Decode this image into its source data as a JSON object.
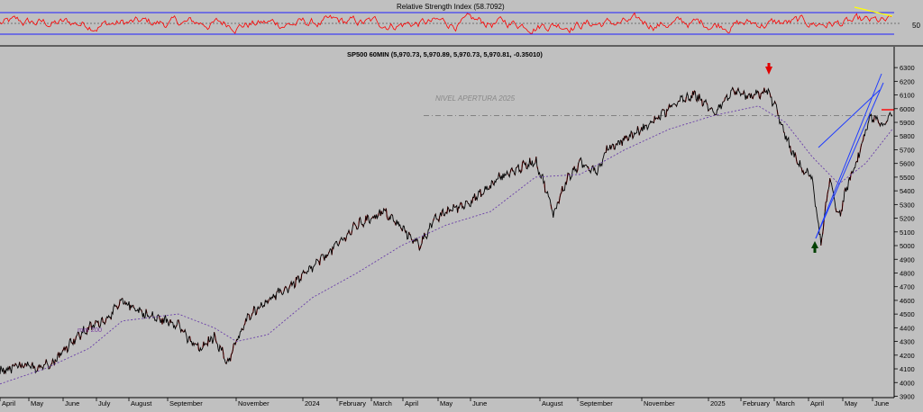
{
  "rsi_panel": {
    "title": "Relative Strength Index (58.7092)",
    "level_label": "50"
  },
  "chart_data": {
    "type": "line",
    "title": "SP500 60MIN (5,970.73, 5,970.89, 5,970.73, 5,970.81, -0.35010)",
    "ylim": [
      3890,
      6360
    ],
    "y_ticks": [
      3900,
      4000,
      4100,
      4200,
      4300,
      4400,
      4500,
      4600,
      4700,
      4800,
      4900,
      5000,
      5100,
      5200,
      5300,
      5400,
      5500,
      5600,
      5700,
      5800,
      5900,
      6000,
      6100,
      6200,
      6300
    ],
    "x_tick_labels": [
      "April",
      "May",
      "June",
      "July",
      "August",
      "September",
      "November",
      "2024",
      "February",
      "March",
      "April",
      "May",
      "June",
      "August",
      "September",
      "November",
      "2025",
      "February",
      "March",
      "April",
      "May",
      "June"
    ],
    "price": {
      "t": [
        0,
        0.02,
        0.04,
        0.06,
        0.08,
        0.1,
        0.12,
        0.137,
        0.15,
        0.165,
        0.18,
        0.2,
        0.21,
        0.225,
        0.24,
        0.255,
        0.265,
        0.28,
        0.3,
        0.32,
        0.34,
        0.36,
        0.38,
        0.4,
        0.43,
        0.45,
        0.47,
        0.485,
        0.5,
        0.52,
        0.54,
        0.56,
        0.58,
        0.6,
        0.61,
        0.62,
        0.635,
        0.65,
        0.67,
        0.68,
        0.7,
        0.72,
        0.74,
        0.76,
        0.78,
        0.8,
        0.82,
        0.84,
        0.86,
        0.87,
        0.88,
        0.89,
        0.9,
        0.91,
        0.92,
        0.93,
        0.94,
        0.95,
        0.96,
        0.975,
        0.99,
        1.0
      ],
      "v": [
        4080,
        4120,
        4110,
        4150,
        4300,
        4400,
        4470,
        4590,
        4550,
        4490,
        4460,
        4430,
        4320,
        4240,
        4340,
        4140,
        4300,
        4500,
        4600,
        4680,
        4780,
        4900,
        5020,
        5150,
        5250,
        5130,
        5000,
        5170,
        5250,
        5300,
        5380,
        5500,
        5560,
        5620,
        5450,
        5230,
        5480,
        5600,
        5550,
        5700,
        5780,
        5850,
        5950,
        6050,
        6100,
        5970,
        6120,
        6080,
        6130,
        6000,
        5800,
        5650,
        5550,
        5500,
        5000,
        5500,
        5200,
        5450,
        5600,
        5950,
        5870,
        5990
      ]
    },
    "ma200": {
      "name": "mm 200",
      "t": [
        0,
        0.05,
        0.1,
        0.137,
        0.2,
        0.24,
        0.265,
        0.3,
        0.35,
        0.4,
        0.45,
        0.5,
        0.55,
        0.6,
        0.65,
        0.7,
        0.75,
        0.8,
        0.85,
        0.88,
        0.91,
        0.94,
        0.97,
        1.0
      ],
      "v": [
        3990,
        4100,
        4250,
        4450,
        4500,
        4400,
        4300,
        4350,
        4620,
        4800,
        5000,
        5150,
        5250,
        5500,
        5520,
        5700,
        5850,
        5950,
        6020,
        5900,
        5650,
        5450,
        5600,
        5850
      ]
    },
    "rsi": {
      "level": 50
    },
    "annotations": [
      {
        "text": "NIVEL APERTURA 2025",
        "value": 5950
      },
      {
        "text": "mm 200"
      }
    ]
  }
}
